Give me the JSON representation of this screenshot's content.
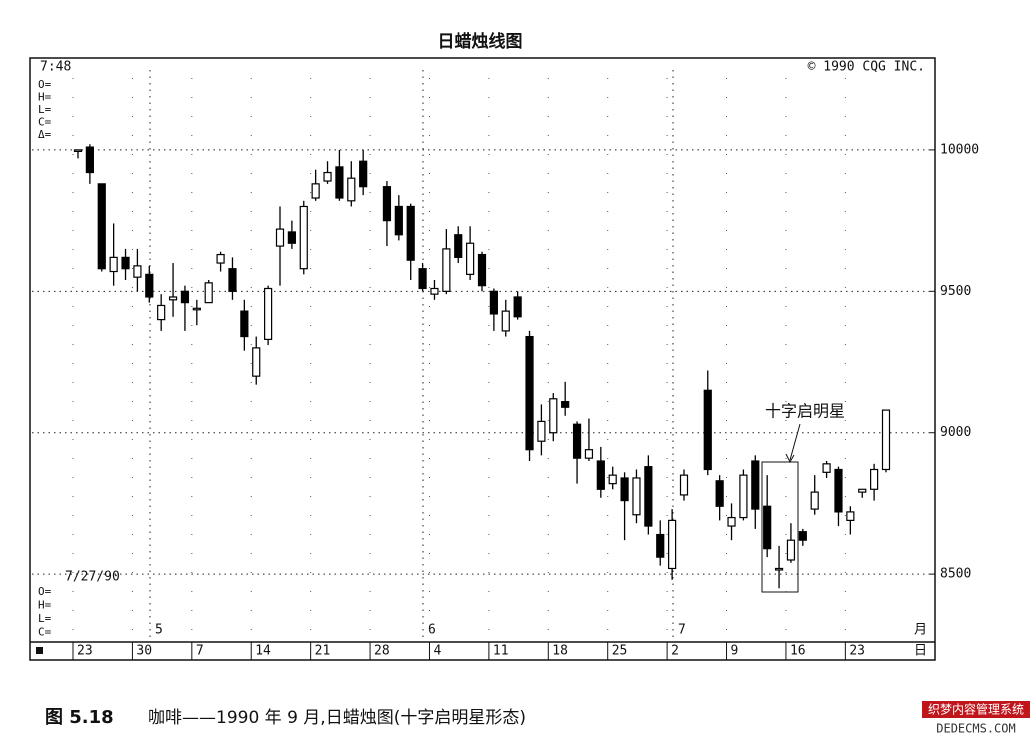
{
  "chart_data": {
    "type": "candlestick",
    "title": "日蜡烛线图",
    "time": "7:48",
    "copyright": "© 1990 CQG INC.",
    "top_fields": [
      "O=",
      "H=",
      "L=",
      "C=",
      "Δ="
    ],
    "date_label": "7/27/90",
    "bottom_fields": [
      "O=",
      "H=",
      "L=",
      "C="
    ],
    "month_labels": [
      "5",
      "6",
      "7"
    ],
    "month_unit": "月",
    "day_unit": "日",
    "annotation": "十字启明星",
    "color": "#000000",
    "grid": true,
    "categories": [
      "23",
      null,
      null,
      null,
      null,
      "30",
      null,
      null,
      null,
      null,
      "7",
      null,
      null,
      null,
      null,
      "14",
      null,
      null,
      null,
      null,
      "21",
      null,
      null,
      null,
      null,
      "28",
      null,
      null,
      null,
      null,
      "4",
      null,
      null,
      null,
      null,
      "11",
      null,
      null,
      null,
      null,
      "18",
      null,
      null,
      null,
      null,
      "25",
      null,
      null,
      null,
      null,
      "2",
      null,
      null,
      null,
      null,
      "9",
      null,
      null,
      null,
      null,
      "16",
      null,
      null,
      null,
      null,
      "23",
      null,
      null,
      null
    ],
    "open": [
      10000,
      10010,
      9880,
      9570,
      9620,
      9550,
      9560,
      9400,
      9470,
      9500,
      9440,
      9460,
      9600,
      9580,
      9430,
      9200,
      9330,
      9660,
      9710,
      9580,
      9830,
      9890,
      9940,
      9820,
      9960,
      null,
      9870,
      9800,
      9800,
      9580,
      9490,
      9500,
      9700,
      9560,
      9630,
      9500,
      9360,
      9480,
      9340,
      8970,
      9000,
      9110,
      9030,
      8910,
      8900,
      8820,
      8840,
      8710,
      8880,
      8640,
      8520,
      8780,
      null,
      9150,
      8830,
      8670,
      8700,
      8900,
      8740,
      8520,
      8550,
      8650,
      8730,
      8860,
      8870,
      8690,
      8790,
      8800,
      8870
    ],
    "high": [
      10000,
      10020,
      9880,
      9740,
      9650,
      9650,
      9590,
      9490,
      9600,
      9520,
      9470,
      9540,
      9640,
      9620,
      9470,
      9340,
      9520,
      9800,
      9750,
      9820,
      9930,
      9960,
      10000,
      9960,
      10000,
      null,
      9890,
      9840,
      9810,
      9600,
      9540,
      9720,
      9730,
      9730,
      9640,
      9510,
      9470,
      9500,
      9360,
      9100,
      9140,
      9180,
      9040,
      9050,
      8950,
      8880,
      8860,
      8870,
      8920,
      8690,
      8730,
      8870,
      null,
      9220,
      8850,
      8750,
      8870,
      8920,
      8850,
      8600,
      8680,
      8660,
      8850,
      8900,
      8880,
      8740,
      8800,
      8890,
      9080
    ],
    "low": [
      9970,
      9880,
      9570,
      9520,
      9540,
      9500,
      9460,
      9360,
      9410,
      9360,
      9380,
      9460,
      9570,
      9470,
      9290,
      9170,
      9310,
      9520,
      9650,
      9560,
      9820,
      9880,
      9820,
      9800,
      9840,
      null,
      9660,
      9680,
      9540,
      9500,
      9470,
      9490,
      9600,
      9540,
      9500,
      9360,
      9340,
      9400,
      8900,
      8920,
      8970,
      9060,
      8820,
      8900,
      8770,
      8800,
      8620,
      8680,
      8640,
      8530,
      8480,
      8760,
      null,
      8850,
      8690,
      8620,
      8690,
      8660,
      8560,
      8450,
      8540,
      8600,
      8710,
      8840,
      8670,
      8640,
      8770,
      8760,
      8860
    ],
    "close": [
      10000,
      9920,
      9580,
      9620,
      9580,
      9590,
      9480,
      9450,
      9480,
      9460,
      9440,
      9530,
      9630,
      9500,
      9340,
      9300,
      9510,
      9720,
      9670,
      9800,
      9880,
      9920,
      9830,
      9900,
      9870,
      null,
      9750,
      9700,
      9610,
      9510,
      9510,
      9650,
      9620,
      9670,
      9520,
      9420,
      9430,
      9410,
      8940,
      9040,
      9120,
      9090,
      8910,
      8940,
      8800,
      8850,
      8760,
      8840,
      8670,
      8560,
      8690,
      8850,
      null,
      8870,
      8740,
      8700,
      8850,
      8730,
      8590,
      8520,
      8620,
      8620,
      8790,
      8890,
      8720,
      8720,
      8800,
      8870,
      9080
    ],
    "ylim": [
      8260,
      10325
    ],
    "yticks": [
      8500,
      9000,
      9500,
      10000
    ]
  },
  "caption": {
    "number": "图 5.18",
    "text": "咖啡——1990 年 9 月,日蜡烛图(十字启明星形态)"
  },
  "watermark": {
    "line1": "织梦内容管理系统",
    "line2": "DEDECMS.COM"
  }
}
